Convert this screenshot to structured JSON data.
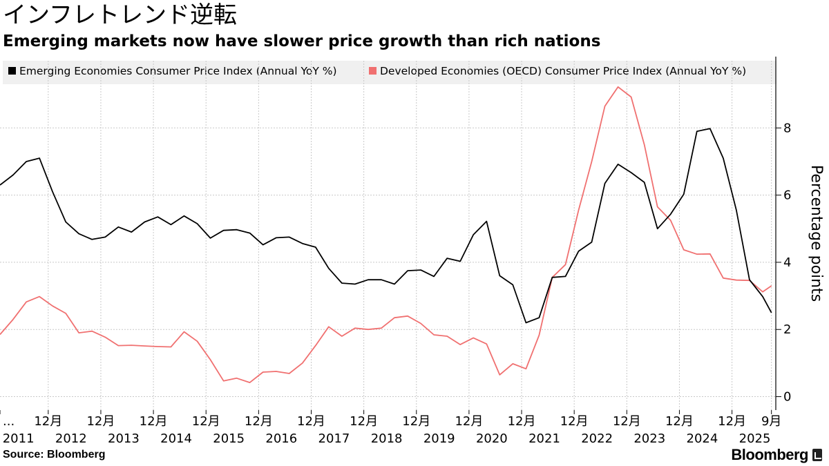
{
  "header": {
    "title": "インフレトレンド逆転",
    "subtitle": "Emerging markets now have slower price growth than rich nations"
  },
  "footer": {
    "source": "Source:  Bloomberg",
    "brand": "Bloomberg"
  },
  "colors": {
    "emerging": "#000000",
    "developed": "#f07070",
    "grid": "#c8c8c8",
    "legend_bg": "#f0f0f0"
  },
  "chart_data": {
    "type": "line",
    "title": "インフレトレンド逆転",
    "subtitle": "Emerging markets now have slower price growth than rich nations",
    "ylabel": "Percentage points",
    "y_axis_position": "right",
    "ylim": [
      -0.4,
      10
    ],
    "yticks": [
      0,
      2,
      4,
      6,
      8
    ],
    "grid": true,
    "legend_position": "top",
    "x_range": [
      2011.0,
      2025.75
    ],
    "xticks": [
      {
        "x": 2011.0,
        "label": "...",
        "year": "2011"
      },
      {
        "x": 2011.917,
        "label": "12月",
        "year": ""
      },
      {
        "x": 2012.917,
        "label": "12月",
        "year": "2012"
      },
      {
        "x": 2013.917,
        "label": "12月",
        "year": "2013"
      },
      {
        "x": 2014.917,
        "label": "12月",
        "year": "2014"
      },
      {
        "x": 2015.917,
        "label": "12月",
        "year": "2015"
      },
      {
        "x": 2016.917,
        "label": "12月",
        "year": "2016"
      },
      {
        "x": 2017.917,
        "label": "12月",
        "year": "2017"
      },
      {
        "x": 2018.917,
        "label": "12月",
        "year": "2018"
      },
      {
        "x": 2019.917,
        "label": "12月",
        "year": "2019"
      },
      {
        "x": 2020.917,
        "label": "12月",
        "year": "2020"
      },
      {
        "x": 2021.917,
        "label": "12月",
        "year": "2021"
      },
      {
        "x": 2022.917,
        "label": "12月",
        "year": "2022"
      },
      {
        "x": 2023.917,
        "label": "12月",
        "year": "2023"
      },
      {
        "x": 2024.917,
        "label": "12月",
        "year": "2024"
      },
      {
        "x": 2025.667,
        "label": "9月",
        "year": "2025"
      }
    ],
    "year_label_positions": [
      {
        "x": 2011.35,
        "label": "2011"
      },
      {
        "x": 2012.35,
        "label": "2012"
      },
      {
        "x": 2013.35,
        "label": "2013"
      },
      {
        "x": 2014.35,
        "label": "2014"
      },
      {
        "x": 2015.35,
        "label": "2015"
      },
      {
        "x": 2016.35,
        "label": "2016"
      },
      {
        "x": 2017.35,
        "label": "2017"
      },
      {
        "x": 2018.35,
        "label": "2018"
      },
      {
        "x": 2019.35,
        "label": "2019"
      },
      {
        "x": 2020.35,
        "label": "2020"
      },
      {
        "x": 2021.35,
        "label": "2021"
      },
      {
        "x": 2022.35,
        "label": "2022"
      },
      {
        "x": 2023.35,
        "label": "2023"
      },
      {
        "x": 2024.35,
        "label": "2024"
      },
      {
        "x": 2025.35,
        "label": "2025"
      }
    ],
    "series": [
      {
        "name": "Emerging Economies Consumer Price Index (Annual YoY %)",
        "color": "#000000",
        "x": [
          2011.0,
          2011.25,
          2011.5,
          2011.75,
          2012.0,
          2012.25,
          2012.5,
          2012.75,
          2013.0,
          2013.25,
          2013.5,
          2013.75,
          2014.0,
          2014.25,
          2014.5,
          2014.75,
          2015.0,
          2015.25,
          2015.5,
          2015.75,
          2016.0,
          2016.25,
          2016.5,
          2016.75,
          2017.0,
          2017.25,
          2017.5,
          2017.75,
          2018.0,
          2018.25,
          2018.5,
          2018.75,
          2019.0,
          2019.25,
          2019.5,
          2019.75,
          2020.0,
          2020.25,
          2020.5,
          2020.75,
          2021.0,
          2021.25,
          2021.5,
          2021.75,
          2022.0,
          2022.25,
          2022.5,
          2022.75,
          2023.0,
          2023.25,
          2023.5,
          2023.75,
          2024.0,
          2024.25,
          2024.5,
          2024.75,
          2025.0,
          2025.25,
          2025.5,
          2025.667
        ],
        "values": [
          6.3,
          6.6,
          7.0,
          7.1,
          6.1,
          5.2,
          4.85,
          4.68,
          4.75,
          5.05,
          4.9,
          5.2,
          5.35,
          5.12,
          5.38,
          5.15,
          4.72,
          4.95,
          4.97,
          4.87,
          4.52,
          4.73,
          4.75,
          4.56,
          4.45,
          3.82,
          3.38,
          3.35,
          3.48,
          3.48,
          3.35,
          3.75,
          3.77,
          3.58,
          4.12,
          4.03,
          4.82,
          5.22,
          3.6,
          3.33,
          2.2,
          2.35,
          3.55,
          3.58,
          4.33,
          4.6,
          6.35,
          6.92,
          6.67,
          6.38,
          5.0,
          5.43,
          6.03,
          7.9,
          7.98,
          7.1,
          5.55,
          3.48,
          2.98,
          2.5
        ]
      },
      {
        "name": "Developed Economies (OECD) Consumer Price Index (Annual YoY %)",
        "color": "#f07070",
        "x": [
          2011.0,
          2011.25,
          2011.5,
          2011.75,
          2012.0,
          2012.25,
          2012.5,
          2012.75,
          2013.0,
          2013.25,
          2013.5,
          2013.75,
          2014.0,
          2014.25,
          2014.5,
          2014.75,
          2015.0,
          2015.25,
          2015.5,
          2015.75,
          2016.0,
          2016.25,
          2016.5,
          2016.75,
          2017.0,
          2017.25,
          2017.5,
          2017.75,
          2018.0,
          2018.25,
          2018.5,
          2018.75,
          2019.0,
          2019.25,
          2019.5,
          2019.75,
          2020.0,
          2020.25,
          2020.5,
          2020.75,
          2021.0,
          2021.25,
          2021.5,
          2021.75,
          2022.0,
          2022.25,
          2022.5,
          2022.75,
          2023.0,
          2023.25,
          2023.5,
          2023.75,
          2024.0,
          2024.25,
          2024.5,
          2024.75,
          2025.0,
          2025.25,
          2025.5,
          2025.667
        ],
        "values": [
          1.85,
          2.3,
          2.82,
          2.98,
          2.7,
          2.48,
          1.9,
          1.95,
          1.77,
          1.52,
          1.53,
          1.51,
          1.49,
          1.48,
          1.93,
          1.65,
          1.1,
          0.47,
          0.55,
          0.42,
          0.73,
          0.75,
          0.69,
          1.0,
          1.52,
          2.08,
          1.8,
          2.04,
          2.0,
          2.04,
          2.35,
          2.4,
          2.18,
          1.84,
          1.8,
          1.55,
          1.75,
          1.57,
          0.65,
          0.98,
          0.83,
          1.83,
          3.55,
          3.93,
          5.55,
          7.0,
          8.65,
          9.22,
          8.92,
          7.5,
          5.65,
          5.25,
          4.37,
          4.24,
          4.25,
          3.53,
          3.47,
          3.46,
          3.12,
          3.3
        ]
      }
    ]
  }
}
